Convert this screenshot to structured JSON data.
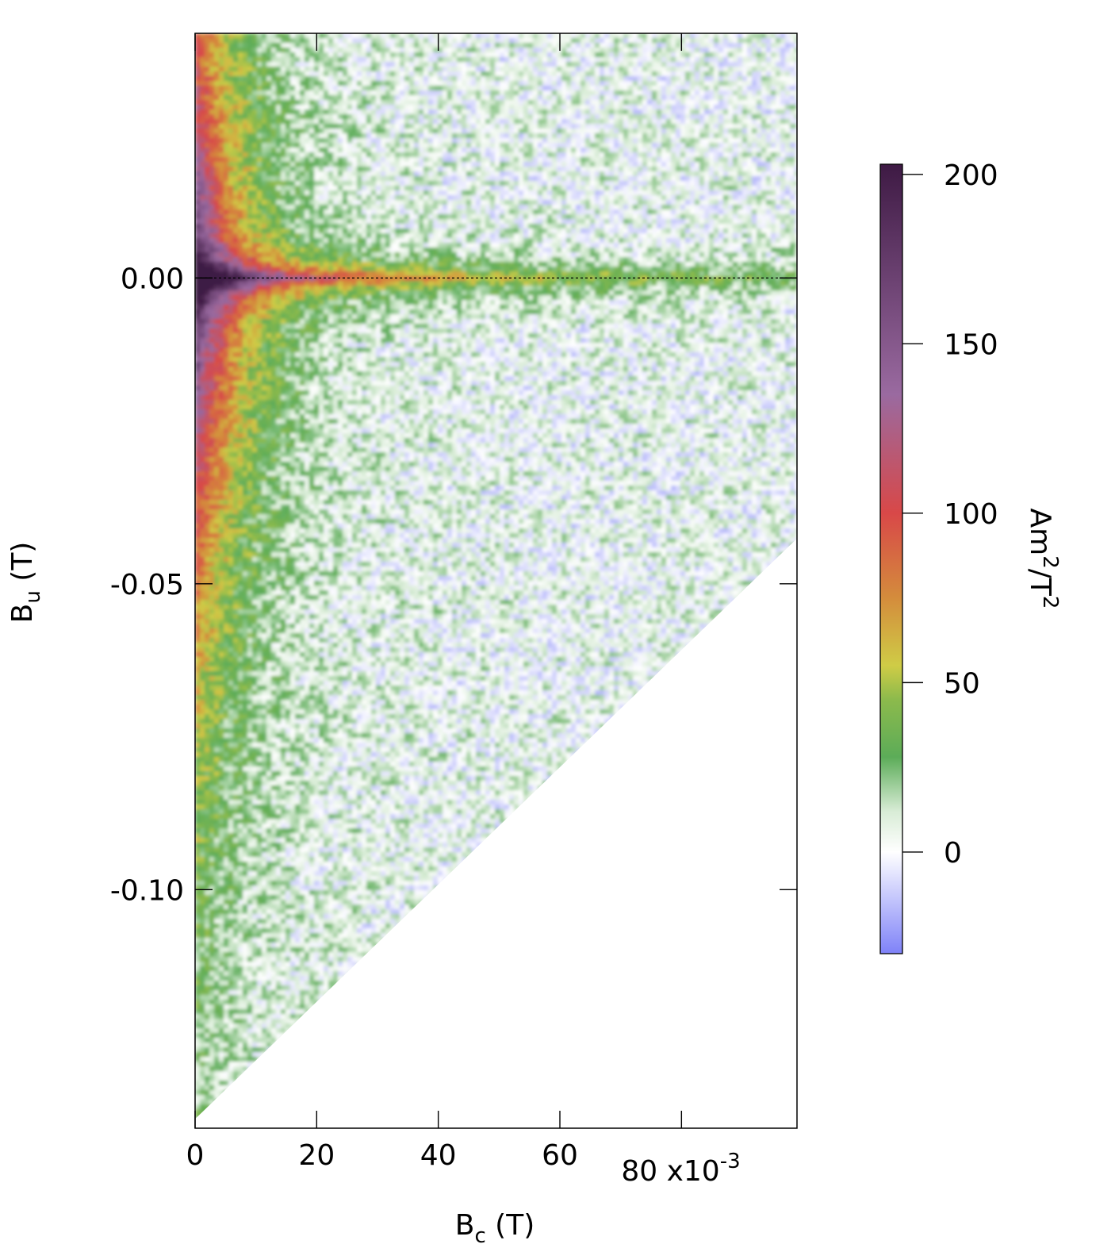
{
  "chart_data": {
    "type": "heatmap",
    "title": "",
    "xlabel": {
      "main": "B",
      "sub": "c",
      "unit": " (T)"
    },
    "ylabel": {
      "main": "B",
      "sub": "u",
      "unit": " (T)"
    },
    "xlim": [
      0,
      0.099
    ],
    "ylim": [
      -0.139,
      0.04
    ],
    "x_ticks": [
      {
        "value": 0,
        "label": "0"
      },
      {
        "value": 0.02,
        "label": "20"
      },
      {
        "value": 0.04,
        "label": "40"
      },
      {
        "value": 0.06,
        "label": "60"
      }
    ],
    "x_tick_extra": {
      "value": 0.08,
      "label": "80 x10",
      "exponent": "-3"
    },
    "y_ticks": [
      {
        "value": 0.0,
        "label": "0.00"
      },
      {
        "value": -0.05,
        "label": "-0.05"
      },
      {
        "value": -0.1,
        "label": "-0.10"
      }
    ],
    "reference_line": {
      "axis": "y",
      "value": 0.0,
      "style": "dotted"
    },
    "mask": "data only where B_u >= -B_c + offset (lower-right triangle blank)",
    "colorbar": {
      "label": {
        "main": "Am",
        "sup1": "2",
        "slash": "/T",
        "sup2": "2"
      },
      "range": [
        -30,
        203
      ],
      "ticks": [
        {
          "value": 0,
          "label": "0"
        },
        {
          "value": 50,
          "label": "50"
        },
        {
          "value": 100,
          "label": "100"
        },
        {
          "value": 150,
          "label": "150"
        },
        {
          "value": 200,
          "label": "200"
        }
      ],
      "stops": [
        {
          "value": -30,
          "color": "#7f82f8"
        },
        {
          "value": 0,
          "color": "#ffffff"
        },
        {
          "value": 12,
          "color": "#d8ecd6"
        },
        {
          "value": 28,
          "color": "#5cac58"
        },
        {
          "value": 45,
          "color": "#8cba4c"
        },
        {
          "value": 55,
          "color": "#cfcc46"
        },
        {
          "value": 75,
          "color": "#d48c3c"
        },
        {
          "value": 100,
          "color": "#d84848"
        },
        {
          "value": 135,
          "color": "#9a6aa0"
        },
        {
          "value": 203,
          "color": "#3e1a44"
        }
      ]
    },
    "colors": {
      "negative": "#7f82f8",
      "zero": "#ffffff",
      "low": "#5cac58",
      "mid": "#cfcc46",
      "high": "#d84848",
      "max": "#3e1a44"
    }
  }
}
